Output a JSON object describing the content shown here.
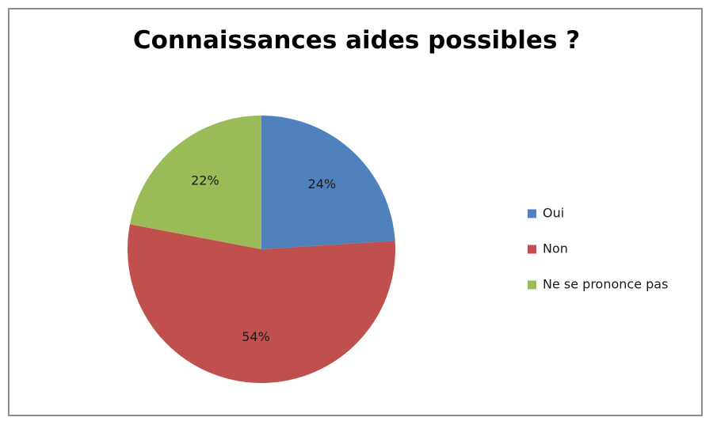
{
  "chart_data": {
    "type": "pie",
    "title": "Connaissances aides possibles ?",
    "categories": [
      "Oui",
      "Non",
      "Ne se prononce pas"
    ],
    "values": [
      24,
      54,
      22
    ],
    "data_labels": [
      "24%",
      "54%",
      "22%"
    ],
    "colors": [
      "#4f81bd",
      "#c0504d",
      "#9bbb59"
    ],
    "start_angle_deg": 0,
    "direction": "clockwise",
    "legend_position": "right",
    "grid": false
  }
}
